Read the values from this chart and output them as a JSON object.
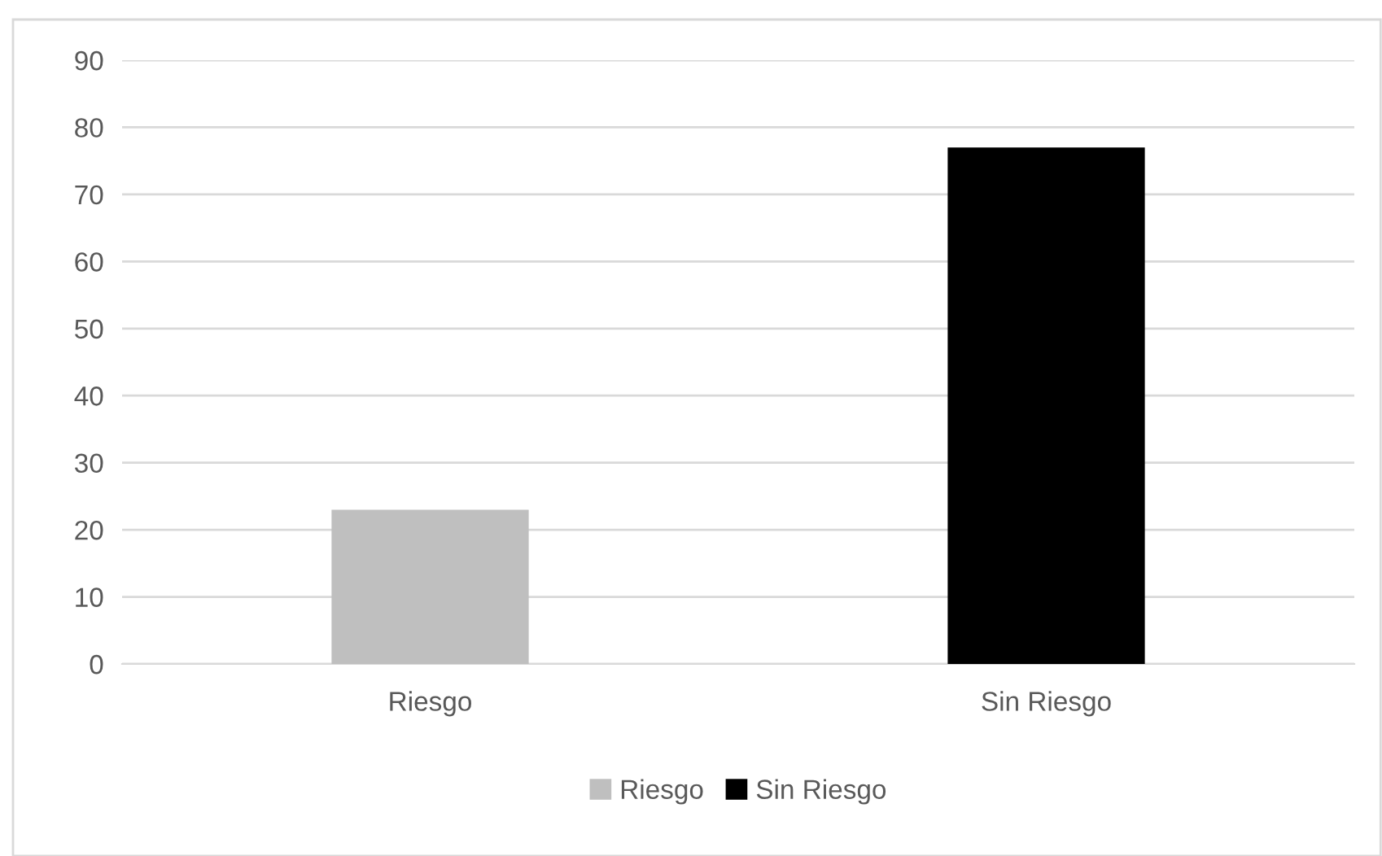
{
  "chart_data": {
    "type": "bar",
    "categories": [
      "Riesgo",
      "Sin Riesgo"
    ],
    "series": [
      {
        "name": "Riesgo",
        "color": "#bfbfbf",
        "values": [
          23,
          null
        ]
      },
      {
        "name": "Sin Riesgo",
        "color": "#000000",
        "values": [
          null,
          77
        ]
      }
    ],
    "ylim": [
      0,
      90
    ],
    "yticks": [
      0,
      10,
      20,
      30,
      40,
      50,
      60,
      70,
      80,
      90
    ],
    "grid": "y",
    "legend": "bottom"
  }
}
